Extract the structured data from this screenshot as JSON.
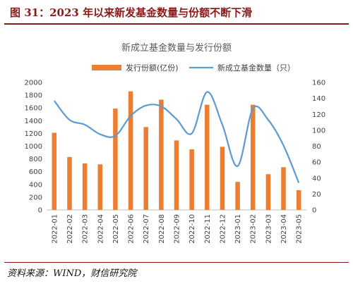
{
  "figure": {
    "header": "图 31：2023 年以来新发基金数量与份额不断下滑",
    "source": "资料来源：WIND，财信研究院"
  },
  "colors": {
    "bar": "#ED7D31",
    "line": "#5B9BD5",
    "accent": "#8B1A1A"
  },
  "chart_data": {
    "type": "bar",
    "title": "新成立基金数量与发行份额",
    "categories": [
      "2022-01",
      "2022-02",
      "2022-03",
      "2022-04",
      "2022-05",
      "2022-06",
      "2022-07",
      "2022-08",
      "2022-09",
      "2022-10",
      "2022-11",
      "2022-12",
      "2023-01",
      "2023-02",
      "2023-03",
      "2023-04",
      "2023-05"
    ],
    "series": [
      {
        "name": "发行份额(亿份)",
        "type": "bar",
        "axis": "left",
        "values": [
          1210,
          830,
          730,
          715,
          1590,
          1860,
          1300,
          1730,
          1090,
          950,
          1650,
          990,
          440,
          1650,
          560,
          670,
          310
        ]
      },
      {
        "name": "新成立基金数量（只）",
        "type": "line",
        "axis": "right",
        "values": [
          137,
          113,
          107,
          95,
          93,
          118,
          131,
          130,
          114,
          96,
          148,
          107,
          55,
          127,
          113,
          81,
          34
        ]
      }
    ],
    "ylim_left": [
      0,
      2000
    ],
    "yticks_left": [
      0,
      200,
      400,
      600,
      800,
      1000,
      1200,
      1400,
      1600,
      1800,
      2000
    ],
    "ylim_right": [
      0,
      160
    ],
    "yticks_right": [
      0,
      20,
      40,
      60,
      80,
      100,
      120,
      140,
      160
    ],
    "legend_position": "top",
    "grid": false
  }
}
